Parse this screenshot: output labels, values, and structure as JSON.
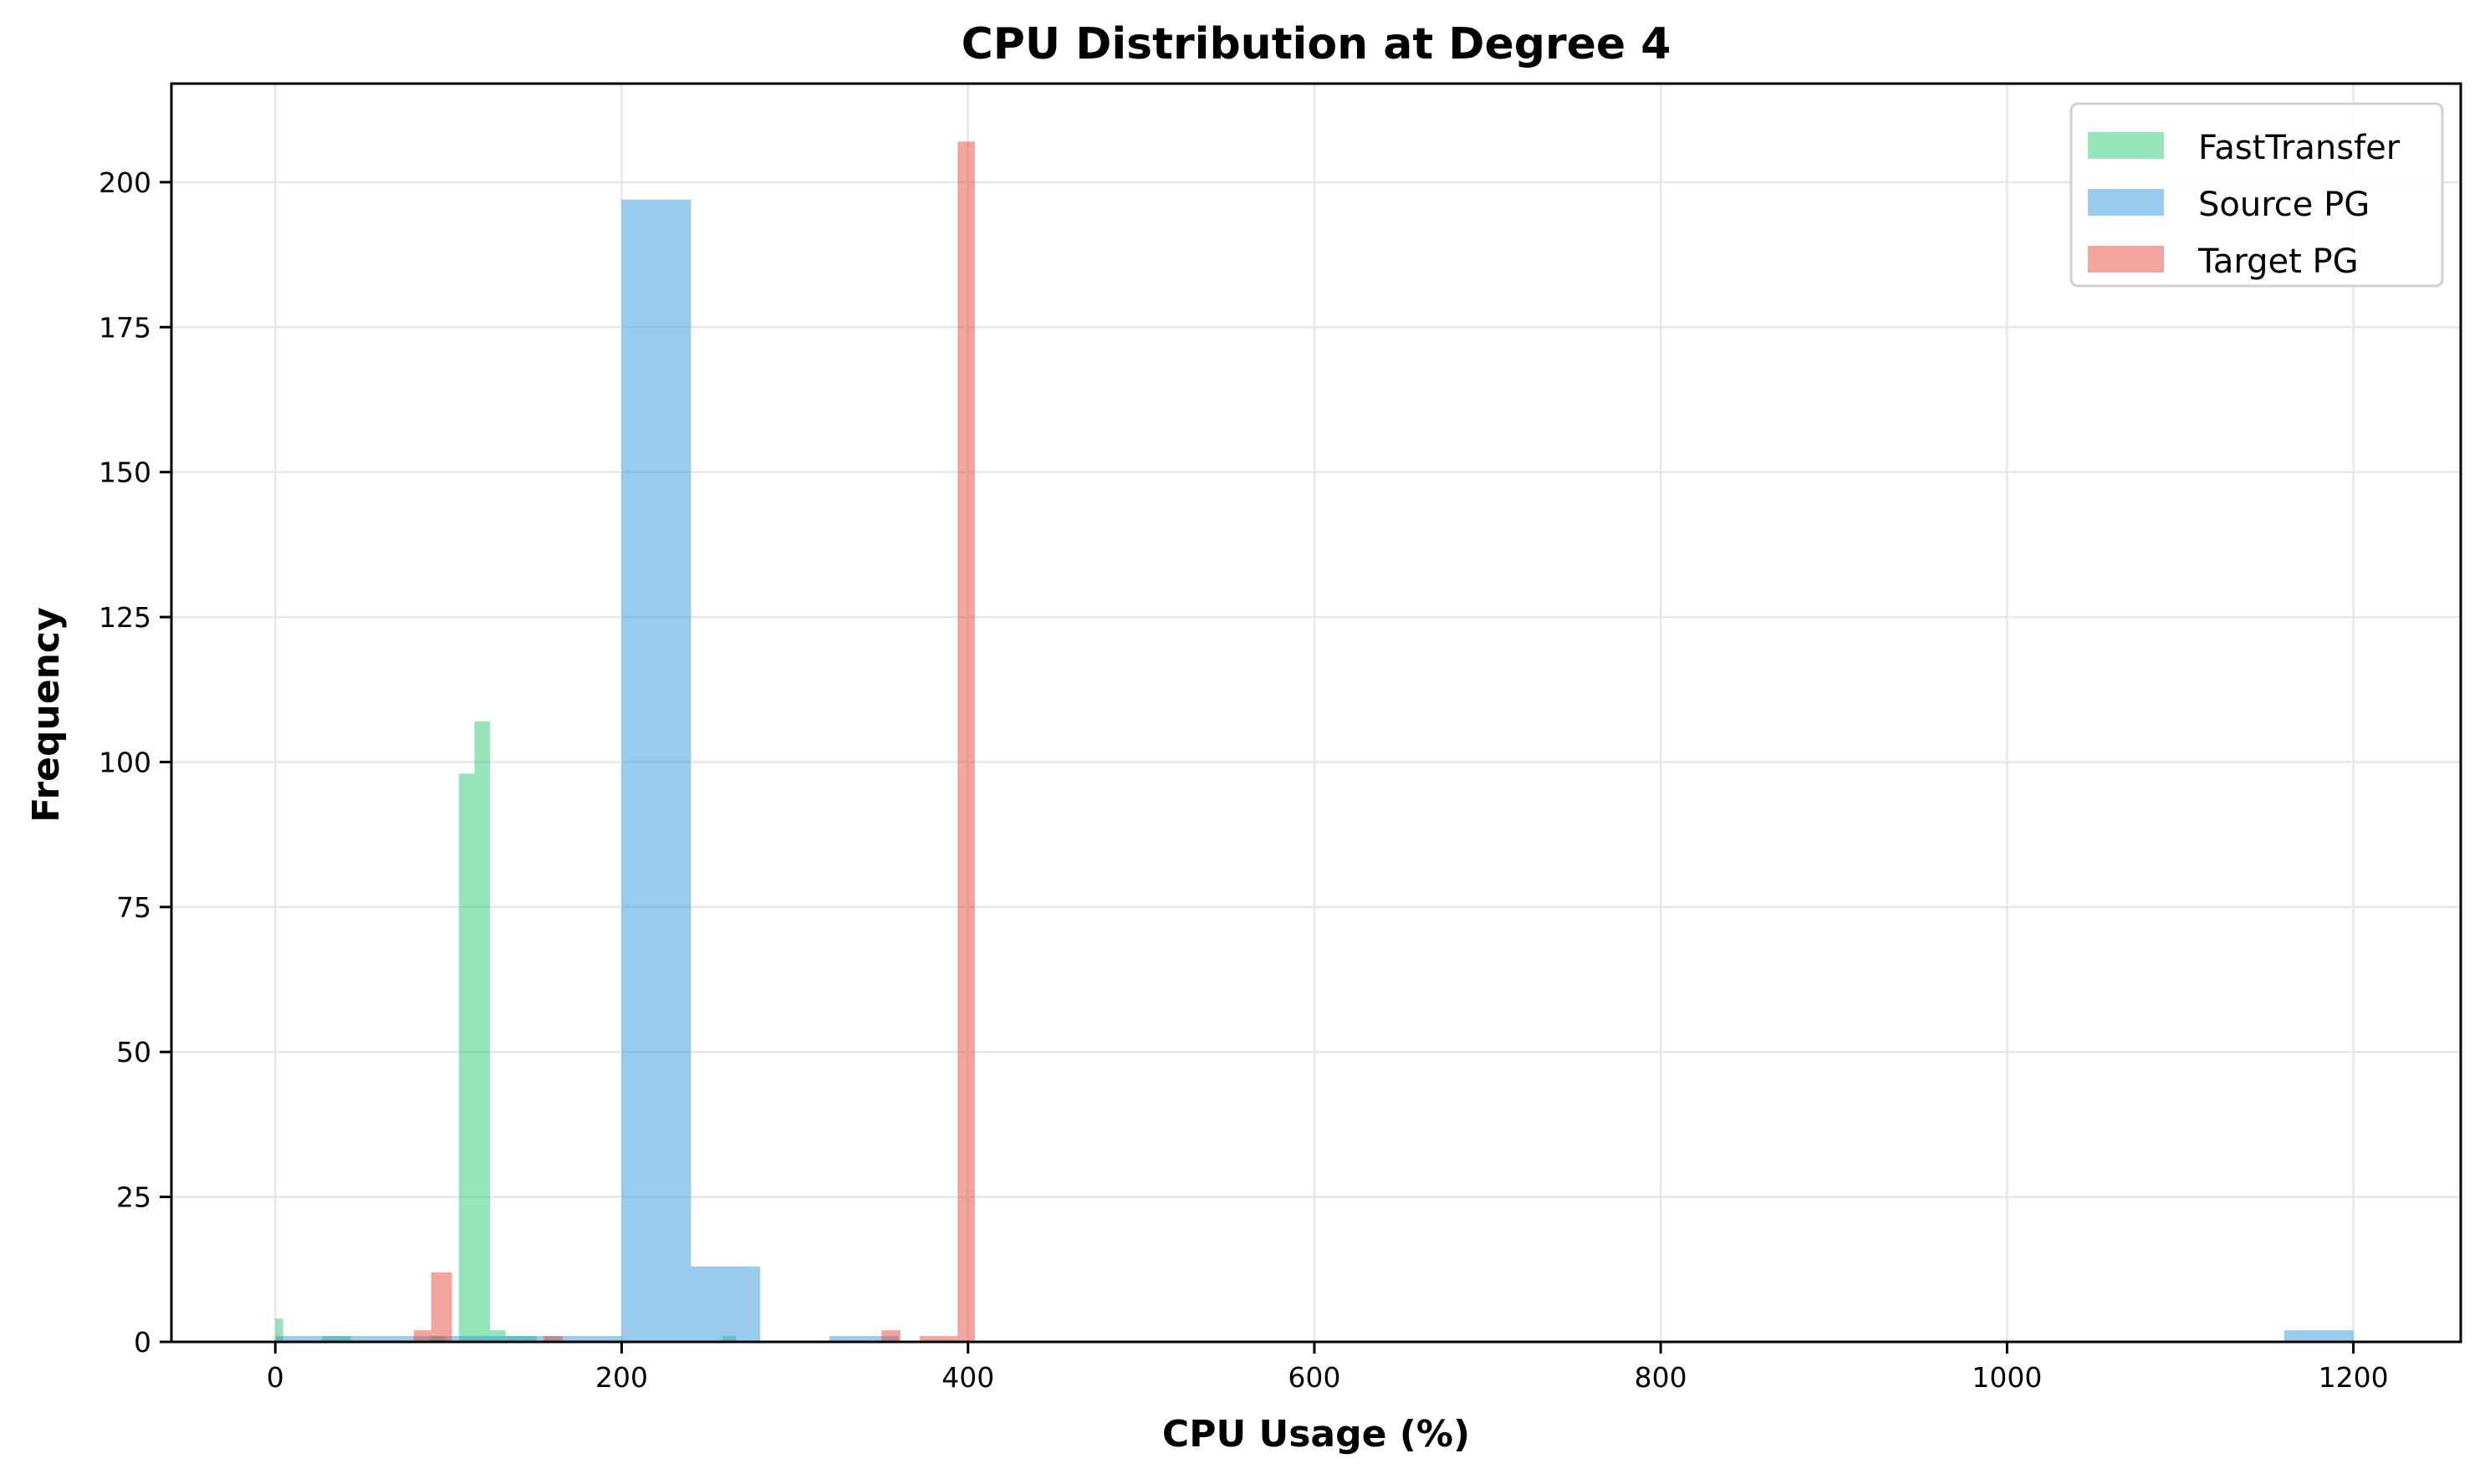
{
  "chart_data": {
    "type": "bar",
    "subtype": "histogram",
    "title": "CPU Distribution at Degree 4",
    "xlabel": "CPU Usage (%)",
    "ylabel": "Frequency",
    "xlim": [
      -60,
      1262
    ],
    "ylim": [
      0,
      217
    ],
    "xticks": [
      0,
      200,
      400,
      600,
      800,
      1000,
      1200
    ],
    "yticks": [
      0,
      25,
      50,
      75,
      100,
      125,
      150,
      175,
      200
    ],
    "grid": true,
    "legend_position": "upper right",
    "series": [
      {
        "name": "FastTransfer",
        "color": "#2ecc71",
        "alpha": 0.5,
        "bins": [
          {
            "x0": 0,
            "x1": 4.5,
            "count": 4
          },
          {
            "x0": 27,
            "x1": 44,
            "count": 1
          },
          {
            "x0": 89,
            "x1": 98,
            "count": 1
          },
          {
            "x0": 106,
            "x1": 115,
            "count": 98
          },
          {
            "x0": 115,
            "x1": 124,
            "count": 107
          },
          {
            "x0": 124,
            "x1": 133,
            "count": 2
          },
          {
            "x0": 133,
            "x1": 142,
            "count": 1
          },
          {
            "x0": 142,
            "x1": 151,
            "count": 1
          },
          {
            "x0": 258,
            "x1": 266,
            "count": 1
          }
        ]
      },
      {
        "name": "Source PG",
        "color": "#3498db",
        "alpha": 0.5,
        "bins": [
          {
            "x0": 0,
            "x1": 40,
            "count": 1
          },
          {
            "x0": 40,
            "x1": 80,
            "count": 1
          },
          {
            "x0": 80,
            "x1": 120,
            "count": 1
          },
          {
            "x0": 120,
            "x1": 160,
            "count": 1
          },
          {
            "x0": 160,
            "x1": 200,
            "count": 1
          },
          {
            "x0": 200,
            "x1": 240,
            "count": 197
          },
          {
            "x0": 240,
            "x1": 280,
            "count": 13
          },
          {
            "x0": 320,
            "x1": 360,
            "count": 1
          },
          {
            "x0": 1160,
            "x1": 1200,
            "count": 2
          }
        ]
      },
      {
        "name": "Target PG",
        "color": "#e74c3c",
        "alpha": 0.5,
        "bins": [
          {
            "x0": 80,
            "x1": 90,
            "count": 2
          },
          {
            "x0": 90,
            "x1": 102,
            "count": 12
          },
          {
            "x0": 155,
            "x1": 166,
            "count": 1
          },
          {
            "x0": 350,
            "x1": 361,
            "count": 2
          },
          {
            "x0": 372,
            "x1": 394,
            "count": 1
          },
          {
            "x0": 394,
            "x1": 404,
            "count": 207
          }
        ]
      }
    ]
  }
}
